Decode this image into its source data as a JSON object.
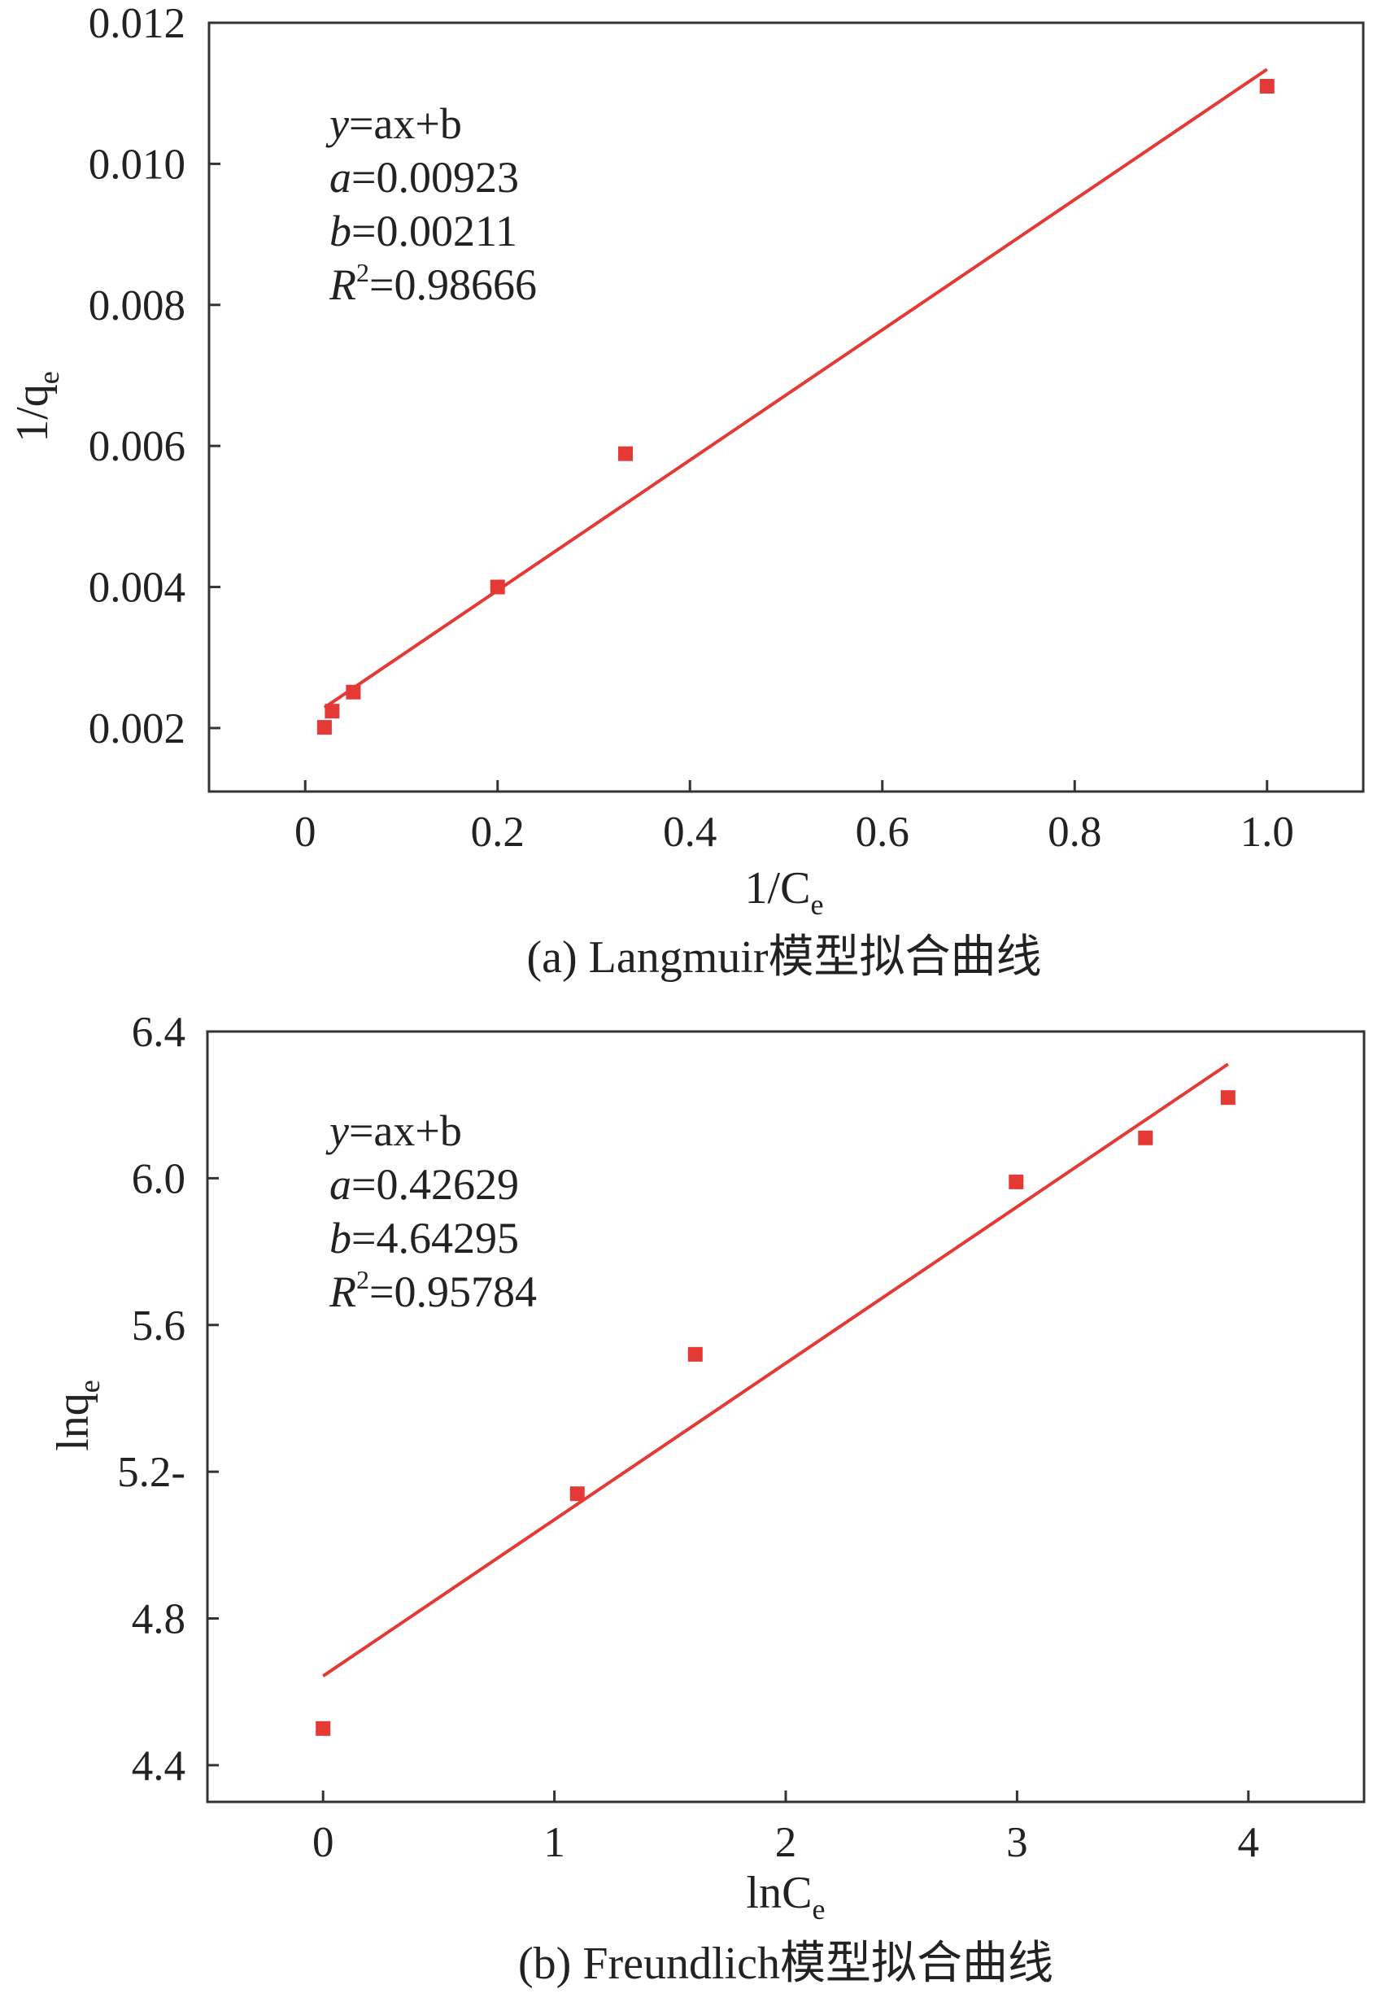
{
  "chart_data": [
    {
      "type": "scatter",
      "xlabel": "1/Ce",
      "ylabel": "1/qe",
      "xlim": [
        -0.1,
        1.1
      ],
      "ylim": [
        0.0011,
        0.012
      ],
      "xticks": [
        0,
        0.2,
        0.4,
        0.6,
        0.8,
        1.0
      ],
      "xtick_labels": [
        "0",
        "0.2",
        "0.4",
        "0.6",
        "0.8",
        "1.0"
      ],
      "yticks": [
        0.002,
        0.004,
        0.006,
        0.008,
        0.01,
        0.012
      ],
      "ytick_labels": [
        "0.002",
        "0.004",
        "0.006",
        "0.008",
        "0.010",
        "0.012"
      ],
      "grid": false,
      "series": [
        {
          "type": "scatter",
          "color": "#e53935",
          "marker": "square",
          "x": [
            0.02,
            0.028,
            0.05,
            0.2,
            0.333,
            1.0
          ],
          "y": [
            0.00201,
            0.00224,
            0.00251,
            0.004,
            0.00589,
            0.0111
          ]
        },
        {
          "type": "line",
          "color": "#e53935",
          "x": [
            0.02,
            1.0
          ],
          "y": [
            0.00229,
            0.01134
          ]
        }
      ],
      "annotations": {
        "eq_var": "y",
        "eq_rhs": "=ax+b",
        "a_label": "a",
        "a_value": "=0.00923",
        "b_label": "b",
        "b_value": "=0.00211",
        "r_label": "R",
        "r_sup": "2",
        "r_value": "=0.98666"
      },
      "xlabel_parts": {
        "main": "1/C",
        "sub": "e"
      },
      "ylabel_parts": {
        "main": "1/q",
        "sub": "e"
      },
      "caption": "(a) Langmuir模型拟合曲线"
    },
    {
      "type": "scatter",
      "xlabel": "lnCe",
      "ylabel": "lnqe",
      "xlim": [
        -0.5,
        4.5
      ],
      "ylim": [
        4.3,
        6.4
      ],
      "xticks": [
        0,
        1,
        2,
        3,
        4
      ],
      "xtick_labels": [
        "0",
        "1",
        "2",
        "3",
        "4"
      ],
      "yticks": [
        4.4,
        4.8,
        5.2,
        5.6,
        6.0,
        6.4
      ],
      "ytick_labels": [
        "4.4",
        "4.8",
        "5.2-",
        "5.6",
        "6.0",
        "6.4"
      ],
      "grid": false,
      "series": [
        {
          "type": "scatter",
          "color": "#e53935",
          "marker": "square",
          "x": [
            0.0,
            1.099,
            1.609,
            2.996,
            3.555,
            3.912
          ],
          "y": [
            4.5,
            5.14,
            5.52,
            5.99,
            6.11,
            6.22
          ]
        },
        {
          "type": "line",
          "color": "#e53935",
          "x": [
            0.0,
            3.912
          ],
          "y": [
            4.643,
            6.311
          ]
        }
      ],
      "annotations": {
        "eq_var": "y",
        "eq_rhs": "=ax+b",
        "a_label": "a",
        "a_value": "=0.42629",
        "b_label": "b",
        "b_value": "=4.64295",
        "r_label": "R",
        "r_sup": "2",
        "r_value": "=0.95784"
      },
      "xlabel_parts": {
        "main": "lnC",
        "sub": "e"
      },
      "ylabel_parts": {
        "main": "lnq",
        "sub": "e"
      },
      "caption": "(b) Freundlich模型拟合曲线"
    }
  ]
}
